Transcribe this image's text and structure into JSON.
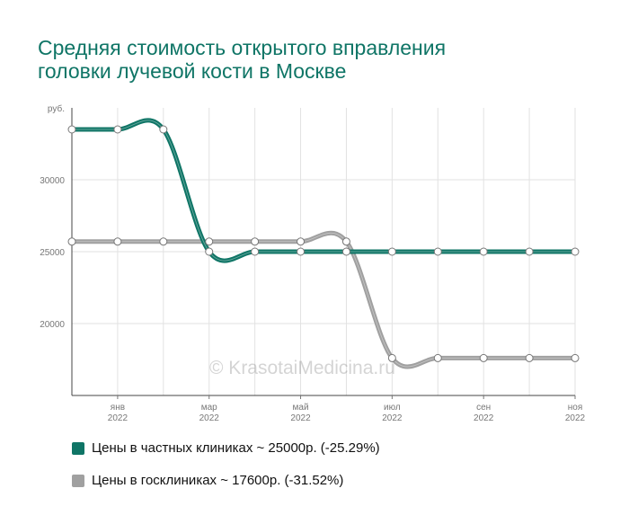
{
  "title_line1": "Средняя стоимость открытого вправления",
  "title_line2": "головки лучевой кости в Москве",
  "watermark": "© KrasotaiMedicina.ru",
  "chart_data": {
    "type": "line",
    "y_unit_label": "руб.",
    "ylim": [
      15000,
      35000
    ],
    "y_ticks": [
      20000,
      25000,
      30000
    ],
    "grid": true,
    "x_month_count": 12,
    "x_ticks": [
      {
        "index": 1,
        "month": "янв",
        "year": "2022"
      },
      {
        "index": 3,
        "month": "мар",
        "year": "2022"
      },
      {
        "index": 5,
        "month": "май",
        "year": "2022"
      },
      {
        "index": 7,
        "month": "июл",
        "year": "2022"
      },
      {
        "index": 9,
        "month": "сен",
        "year": "2022"
      },
      {
        "index": 11,
        "month": "ноя",
        "year": "2022"
      }
    ],
    "series": [
      {
        "name": "Цены в частных клиниках ~ 25000р. (-25.29%)",
        "color": "#0f7566",
        "values": [
          33500,
          33500,
          33500,
          25000,
          25000,
          25000,
          25000,
          25000,
          25000,
          25000,
          25000,
          25000
        ]
      },
      {
        "name": "Цены в госклиниках ~ 17600р. (-31.52%)",
        "color": "#a0a0a0",
        "values": [
          25700,
          25700,
          25700,
          25700,
          25700,
          25700,
          25700,
          17600,
          17600,
          17600,
          17600,
          17600
        ]
      }
    ]
  }
}
